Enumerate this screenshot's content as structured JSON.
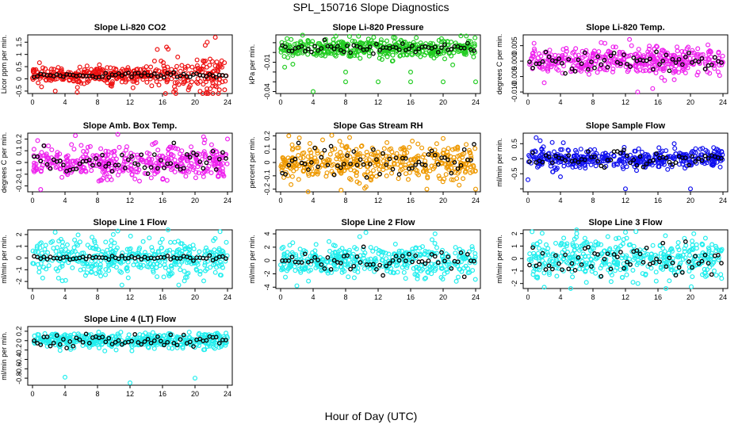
{
  "figure": {
    "title": "SPL_150716  Slope Diagnostics",
    "xlabel": "Hour of Day (UTC)"
  },
  "chart_data": [
    {
      "type": "scatter",
      "title": "Slope Li-820 CO2",
      "ylabel": "Licor ppm per min.",
      "color": "#ee1111",
      "x_ticks": [
        "0",
        "4",
        "8",
        "12",
        "16",
        "20",
        "24"
      ],
      "xlim": [
        0,
        24
      ],
      "yticks": [
        -0.5,
        0,
        0.5,
        1,
        1.5
      ],
      "ytick_labels": [
        "-0.5",
        "0",
        "0.5",
        "1",
        "1.5"
      ],
      "ylim": [
        -0.6,
        1.8
      ],
      "center": 0.15,
      "spread": 0.18,
      "mean_spread": 0.05,
      "late_spread": 0.45,
      "outliers": [
        {
          "x": 2.8,
          "y": -0.5
        },
        {
          "x": 5.5,
          "y": -0.55
        },
        {
          "x": 16.5,
          "y": 1.3
        },
        {
          "x": 22.5,
          "y": 1.7
        },
        {
          "x": 21.5,
          "y": 1.5
        }
      ]
    },
    {
      "type": "scatter",
      "title": "Slope Li-820 Pressure",
      "ylabel": "kPa per min.",
      "color": "#22cc22",
      "x_ticks": [
        "0",
        "4",
        "8",
        "12",
        "16",
        "20",
        "24"
      ],
      "xlim": [
        0,
        24
      ],
      "yticks": [
        -0.04,
        -0.03,
        -0.02,
        -0.01,
        0,
        0.01
      ],
      "ytick_labels": [
        "-0.04",
        "",
        "",
        "-0.01",
        "",
        ""
      ],
      "ylim": [
        -0.042,
        0.018
      ],
      "center": 0.004,
      "spread": 0.005,
      "mean_spread": 0.003,
      "late_spread": 0.005,
      "outliers": [
        {
          "x": 0.5,
          "y": -0.015
        },
        {
          "x": 1.5,
          "y": -0.012
        },
        {
          "x": 4,
          "y": -0.04
        },
        {
          "x": 8,
          "y": -0.03
        },
        {
          "x": 8,
          "y": -0.02
        },
        {
          "x": 12,
          "y": -0.03
        },
        {
          "x": 16,
          "y": -0.03
        },
        {
          "x": 16,
          "y": -0.02
        },
        {
          "x": 20,
          "y": -0.03
        },
        {
          "x": 24,
          "y": -0.03
        }
      ]
    },
    {
      "type": "scatter",
      "title": "Slope Li-820 Temp.",
      "ylabel": "degrees C per min.",
      "color": "#ee22ee",
      "x_ticks": [
        "0",
        "4",
        "8",
        "12",
        "16",
        "20",
        "24"
      ],
      "xlim": [
        0,
        24
      ],
      "yticks": [
        -0.01,
        -0.005,
        0,
        0.005
      ],
      "ytick_labels": [
        "-0.010",
        "-0.005",
        "0.000",
        "0.005"
      ],
      "ylim": [
        -0.0105,
        0.0085
      ],
      "center": 0.0,
      "spread": 0.002,
      "mean_spread": 0.0015,
      "late_spread": 0.002,
      "outliers": [
        {
          "x": 2,
          "y": -0.007
        },
        {
          "x": 12.5,
          "y": 0.007
        },
        {
          "x": 13.5,
          "y": -0.01
        },
        {
          "x": 18,
          "y": -0.006
        },
        {
          "x": 9,
          "y": 0.006
        }
      ]
    },
    {
      "type": "scatter",
      "title": "Slope Amb. Box Temp.",
      "ylabel": "degrees C per min.",
      "color": "#ee22ee",
      "x_ticks": [
        "0",
        "4",
        "8",
        "12",
        "16",
        "20",
        "24"
      ],
      "xlim": [
        0,
        24
      ],
      "yticks": [
        -0.2,
        -0.1,
        0,
        0.1,
        0.2
      ],
      "ytick_labels": [
        "-0.2",
        "-0.1",
        "0",
        "0.1",
        "0.2"
      ],
      "ylim": [
        -0.25,
        0.25
      ],
      "center": 0.0,
      "spread": 0.07,
      "mean_spread": 0.05,
      "late_spread": 0.07,
      "outliers": [
        {
          "x": 1,
          "y": -0.23
        },
        {
          "x": 10.5,
          "y": 0.24
        },
        {
          "x": 24,
          "y": 0.2
        }
      ]
    },
    {
      "type": "scatter",
      "title": "Slope Gas Stream RH",
      "ylabel": "percent per min.",
      "color": "#ee9900",
      "x_ticks": [
        "0",
        "4",
        "8",
        "12",
        "16",
        "20",
        "24"
      ],
      "xlim": [
        0,
        24
      ],
      "yticks": [
        -0.2,
        -0.1,
        0,
        0.1,
        0.2
      ],
      "ytick_labels": [
        "-0.2",
        "-0.1",
        "0",
        "0.1",
        "0.2"
      ],
      "ylim": [
        -0.22,
        0.22
      ],
      "center": 0.0,
      "spread": 0.07,
      "mean_spread": 0.05,
      "late_spread": 0.07,
      "outliers": [
        {
          "x": 1,
          "y": 0.2
        },
        {
          "x": 24,
          "y": -0.2
        },
        {
          "x": 18,
          "y": -0.2
        },
        {
          "x": 20,
          "y": 0.18
        }
      ]
    },
    {
      "type": "scatter",
      "title": "Slope Sample Flow",
      "ylabel": "ml/min per min.",
      "color": "#1111ee",
      "x_ticks": [
        "0",
        "4",
        "8",
        "12",
        "16",
        "20",
        "24"
      ],
      "xlim": [
        0,
        24
      ],
      "yticks": [
        -1,
        -0.5,
        0,
        0.5
      ],
      "ytick_labels": [
        "",
        "-0.5",
        "0",
        "0.5"
      ],
      "ylim": [
        -1.1,
        0.85
      ],
      "center": 0.0,
      "spread": 0.15,
      "mean_spread": 0.12,
      "late_spread": 0.15,
      "outliers": [
        {
          "x": 0,
          "y": -0.7
        },
        {
          "x": 1,
          "y": 0.7
        },
        {
          "x": 1.5,
          "y": 0.6
        },
        {
          "x": 12,
          "y": -1.0
        },
        {
          "x": 18,
          "y": 0.5
        },
        {
          "x": 20,
          "y": -1.0
        },
        {
          "x": 4,
          "y": -0.6
        }
      ]
    },
    {
      "type": "scatter",
      "title": "Slope Line 1 Flow",
      "ylabel": "ml/min per min.",
      "color": "#22eeee",
      "x_ticks": [
        "0",
        "4",
        "8",
        "12",
        "16",
        "20",
        "24"
      ],
      "xlim": [
        0,
        24
      ],
      "yticks": [
        -2,
        -1,
        0,
        1,
        2
      ],
      "ytick_labels": [
        "-2",
        "-1",
        "0",
        "1",
        "2"
      ],
      "ylim": [
        -2.6,
        2.4
      ],
      "center": 0.0,
      "spread": 0.8,
      "mean_spread": 0.1,
      "late_spread": 0.8,
      "outliers": [
        {
          "x": 10.5,
          "y": 2.3
        },
        {
          "x": 11,
          "y": -2.3
        },
        {
          "x": 18,
          "y": -2.3
        }
      ]
    },
    {
      "type": "scatter",
      "title": "Slope Line 2 Flow",
      "ylabel": "ml/min per min.",
      "color": "#22eeee",
      "x_ticks": [
        "0",
        "4",
        "8",
        "12",
        "16",
        "20",
        "24"
      ],
      "xlim": [
        0,
        24
      ],
      "yticks": [
        -4,
        -2,
        0,
        2,
        4
      ],
      "ytick_labels": [
        "-4",
        "-2",
        "0",
        "2",
        "4"
      ],
      "ylim": [
        -4.2,
        4.6
      ],
      "center": 0.0,
      "spread": 1.1,
      "mean_spread": 0.8,
      "late_spread": 1.3,
      "outliers": [
        {
          "x": 10.5,
          "y": 4.2
        },
        {
          "x": 2,
          "y": -3.8
        },
        {
          "x": 19,
          "y": 4.0
        }
      ]
    },
    {
      "type": "scatter",
      "title": "Slope Line 3 Flow",
      "ylabel": "ml/min per min.",
      "color": "#22eeee",
      "x_ticks": [
        "0",
        "4",
        "8",
        "12",
        "16",
        "20",
        "24"
      ],
      "xlim": [
        0,
        24
      ],
      "yticks": [
        -2,
        -1,
        0,
        1,
        2
      ],
      "ytick_labels": [
        "-2",
        "-1",
        "0",
        "1",
        "2"
      ],
      "ylim": [
        -2.4,
        2.3
      ],
      "center": 0.0,
      "spread": 0.8,
      "mean_spread": 0.6,
      "late_spread": 0.8,
      "outliers": [
        {
          "x": 2,
          "y": -2.3
        },
        {
          "x": 12,
          "y": 2.1
        },
        {
          "x": 6,
          "y": 2.0
        }
      ]
    },
    {
      "type": "scatter",
      "title": "Slope Line 4 (LT) Flow",
      "ylabel": "ml/min per min.",
      "color": "#22eeee",
      "x_ticks": [
        "0",
        "4",
        "8",
        "12",
        "16",
        "20",
        "24"
      ],
      "xlim": [
        0,
        24
      ],
      "yticks": [
        -0.8,
        -0.6,
        -0.4,
        -0.2,
        0,
        0.2
      ],
      "ytick_labels": [
        "-0.8",
        "-0.6",
        "-0.4",
        "-0.2",
        "0",
        "0.2"
      ],
      "ylim": [
        -0.95,
        0.3
      ],
      "center": 0.0,
      "spread": 0.08,
      "mean_spread": 0.06,
      "late_spread": 0.08,
      "outliers": [
        {
          "x": 4,
          "y": -0.78
        },
        {
          "x": 12,
          "y": -0.9
        },
        {
          "x": 20,
          "y": -0.8
        }
      ]
    }
  ]
}
